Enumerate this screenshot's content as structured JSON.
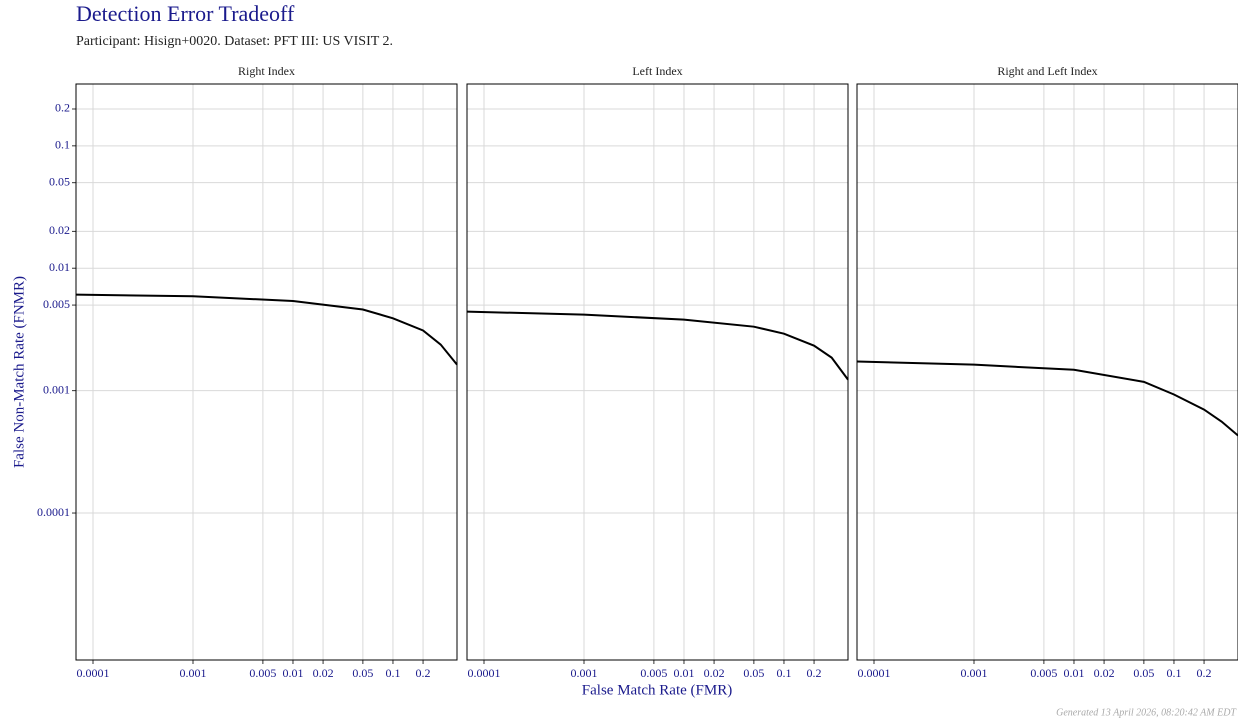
{
  "title": "Detection Error Tradeoff",
  "subtitle": "Participant: Hisign+0020. Dataset: PFT III: US VISIT 2.",
  "x_label": "False Match Rate (FMR)",
  "y_label": "False Non-Match Rate (FNMR)",
  "footer": "Generated 13 April 2026, 08:20:42 AM EDT",
  "chart_data": [
    {
      "type": "line",
      "title": "Right Index",
      "x_log": true,
      "y_log": true,
      "grid": true,
      "x": [
        6.76e-05,
        0.001,
        0.01,
        0.05,
        0.1,
        0.2,
        0.3,
        0.437
      ],
      "series": [
        {
          "color": "#000000",
          "values": [
            0.00608,
            0.0059,
            0.0054,
            0.0046,
            0.0039,
            0.0031,
            0.00238,
            0.00163
          ]
        }
      ],
      "xlim": [
        6.76e-05,
        0.437
      ],
      "ylim": [
        6.3e-06,
        0.32
      ],
      "xticks": [
        0.0001,
        0.001,
        0.005,
        0.01,
        0.02,
        0.05,
        0.1,
        0.2
      ],
      "yticks": [
        0.0001,
        0.001,
        0.005,
        0.01,
        0.02,
        0.05,
        0.1,
        0.2
      ]
    },
    {
      "type": "line",
      "title": "Left Index",
      "x_log": true,
      "y_log": true,
      "grid": true,
      "x": [
        6.76e-05,
        0.001,
        0.01,
        0.05,
        0.1,
        0.2,
        0.3,
        0.437
      ],
      "series": [
        {
          "color": "#000000",
          "values": [
            0.00442,
            0.00418,
            0.0038,
            0.00333,
            0.00292,
            0.00233,
            0.00186,
            0.00123
          ]
        }
      ],
      "xlim": [
        6.76e-05,
        0.437
      ],
      "ylim": [
        6.3e-06,
        0.32
      ],
      "xticks": [
        0.0001,
        0.001,
        0.005,
        0.01,
        0.02,
        0.05,
        0.1,
        0.2
      ],
      "yticks": [
        0.0001,
        0.001,
        0.005,
        0.01,
        0.02,
        0.05,
        0.1,
        0.2
      ]
    },
    {
      "type": "line",
      "title": "Right and Left Index",
      "x_log": true,
      "y_log": true,
      "grid": true,
      "x": [
        6.76e-05,
        0.001,
        0.01,
        0.05,
        0.1,
        0.2,
        0.3,
        0.437
      ],
      "series": [
        {
          "color": "#000000",
          "values": [
            0.00173,
            0.00163,
            0.00148,
            0.00118,
            0.00093,
            0.0007,
            0.000558,
            0.00043
          ]
        }
      ],
      "xlim": [
        6.76e-05,
        0.437
      ],
      "ylim": [
        6.3e-06,
        0.32
      ],
      "xticks": [
        0.0001,
        0.001,
        0.005,
        0.01,
        0.02,
        0.05,
        0.1,
        0.2
      ],
      "yticks": [
        0.0001,
        0.001,
        0.005,
        0.01,
        0.02,
        0.05,
        0.1,
        0.2
      ]
    }
  ]
}
